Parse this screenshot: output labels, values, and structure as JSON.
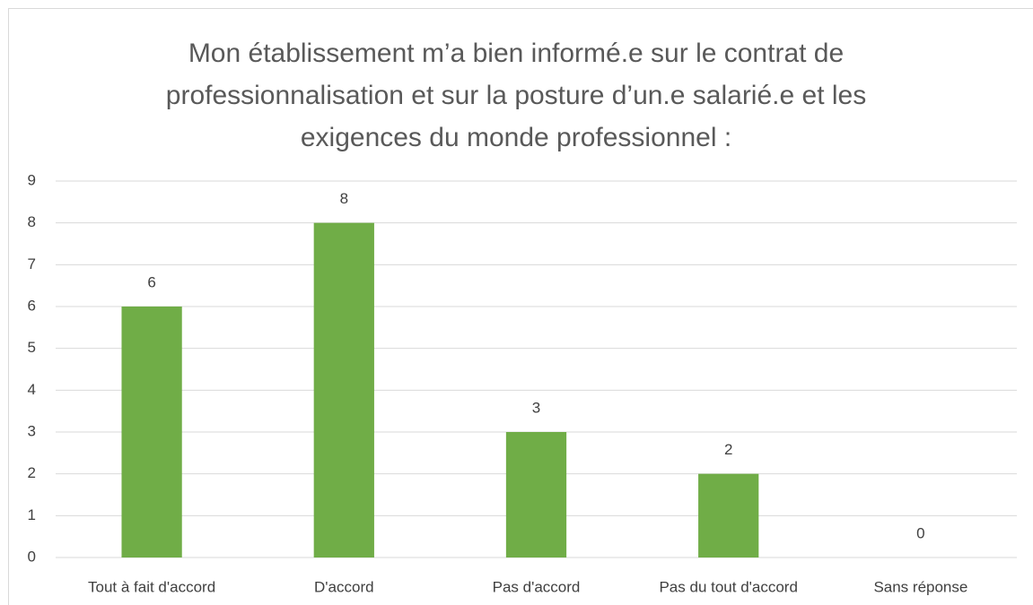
{
  "chart_data": {
    "type": "bar",
    "title": "Mon établissement m’a bien informé.e sur le contrat de professionnalisation et sur la posture d’un.e salarié.e et les exigences du monde professionnel :",
    "categories": [
      "Tout à fait d'accord",
      "D'accord",
      "Pas d'accord",
      "Pas du tout d'accord",
      "Sans réponse"
    ],
    "values": [
      6,
      8,
      3,
      2,
      0
    ],
    "color": "#70ad47",
    "ylim": [
      0,
      9
    ],
    "yticks": [
      0,
      1,
      2,
      3,
      4,
      5,
      6,
      7,
      8,
      9
    ],
    "grid": true,
    "data_labels": true
  }
}
